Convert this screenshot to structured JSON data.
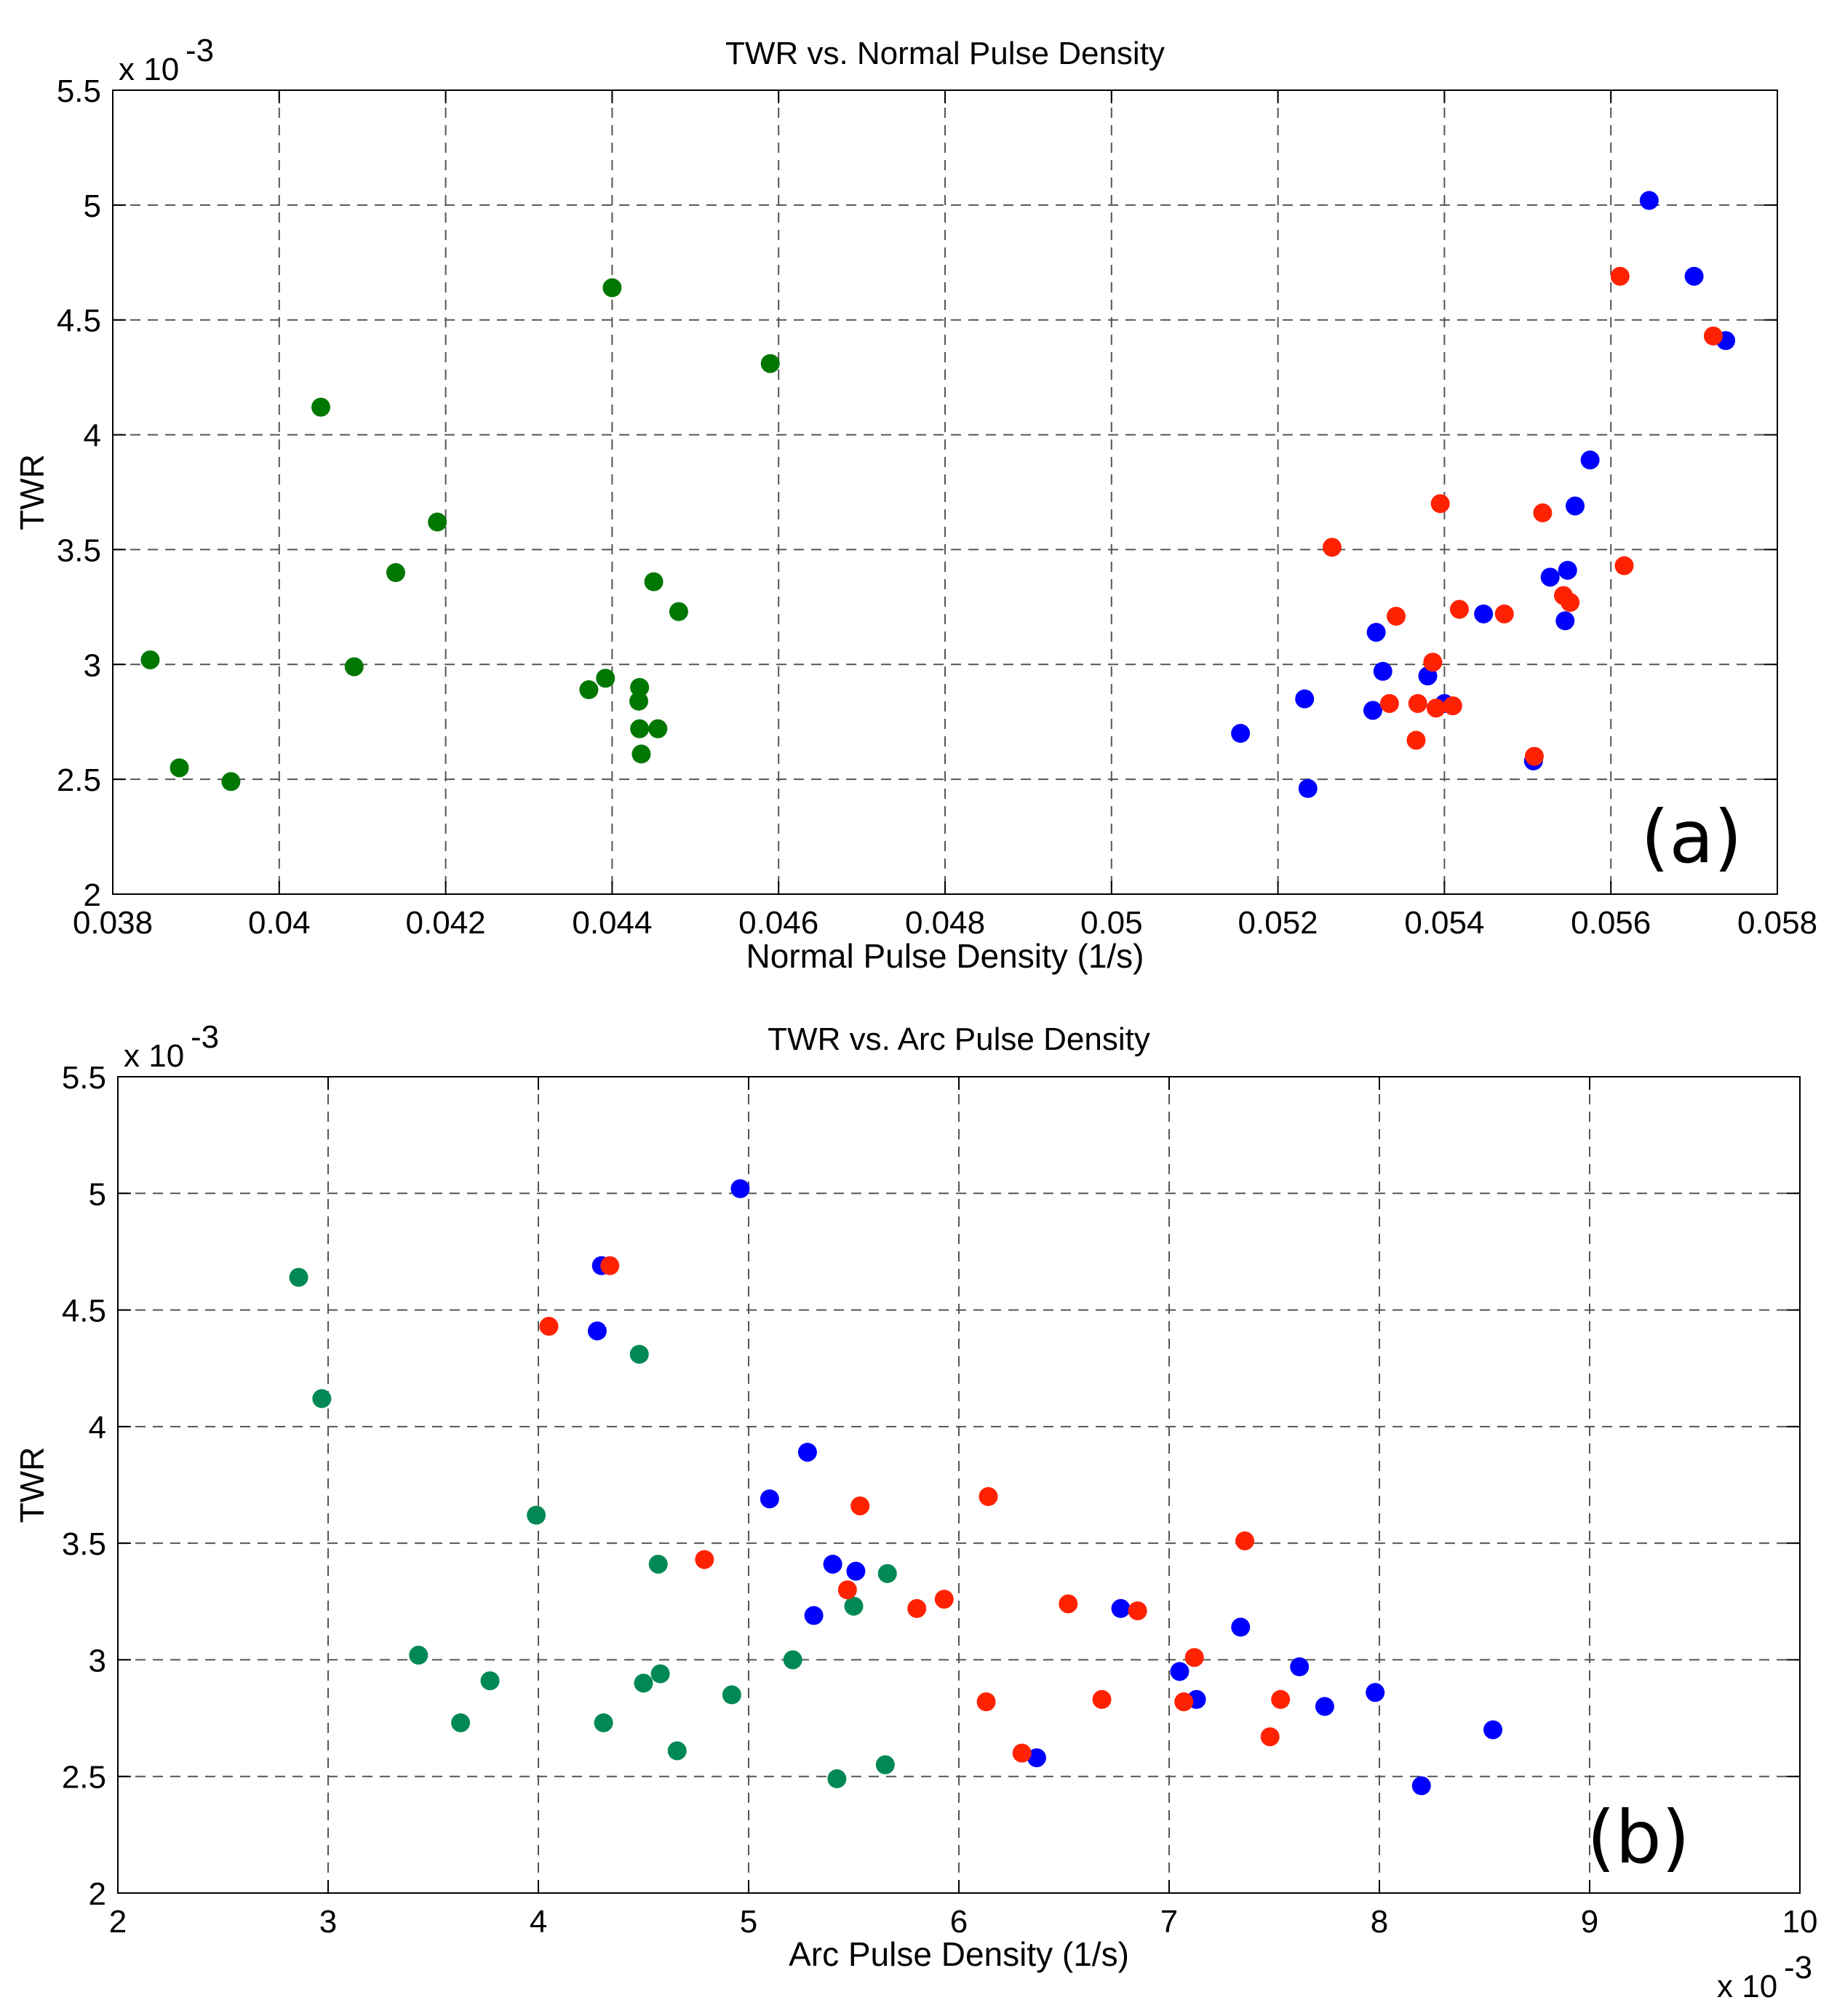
{
  "colors": {
    "red": "#ff2200",
    "blue": "#0000ff",
    "green_a": "#007700",
    "green_b": "#008855"
  },
  "chart_data": [
    {
      "type": "scatter",
      "title": "TWR vs. Normal Pulse Density",
      "xlabel": "Normal Pulse Density (1/s)",
      "ylabel": "TWR",
      "xlim": [
        0.038,
        0.058
      ],
      "ylim": [
        2,
        5.5
      ],
      "xticks": [
        0.038,
        0.04,
        0.042,
        0.044,
        0.046,
        0.048,
        0.05,
        0.052,
        0.054,
        0.056,
        0.058
      ],
      "xtick_labels": [
        "0.038",
        "0.04",
        "0.042",
        "0.044",
        "0.046",
        "0.048",
        "0.05",
        "0.052",
        "0.054",
        "0.056",
        "0.058"
      ],
      "yticks": [
        2,
        2.5,
        3,
        3.5,
        4,
        4.5,
        5,
        5.5
      ],
      "ytick_labels": [
        "2",
        "2.5",
        "3",
        "3.5",
        "4",
        "4.5",
        "5",
        "5.5"
      ],
      "y_multiplier": "x 10",
      "y_exponent": "-3",
      "x_multiplier": "",
      "x_exponent": "",
      "grid": true,
      "panel_label": "(a)",
      "series": [
        {
          "name": "green",
          "color": "#007700",
          "points": [
            [
              0.03845,
              3.02
            ],
            [
              0.0388,
              2.55
            ],
            [
              0.03942,
              2.49
            ],
            [
              0.0405,
              4.12
            ],
            [
              0.0409,
              2.99
            ],
            [
              0.0414,
              3.4
            ],
            [
              0.0419,
              3.62
            ],
            [
              0.04433,
              2.9
            ],
            [
              0.04433,
              2.72
            ],
            [
              0.04372,
              2.89
            ],
            [
              0.04392,
              2.94
            ],
            [
              0.044,
              4.64
            ],
            [
              0.04432,
              2.84
            ],
            [
              0.04435,
              2.61
            ],
            [
              0.0445,
              3.36
            ],
            [
              0.04455,
              2.72
            ],
            [
              0.0448,
              3.23
            ],
            [
              0.0459,
              4.31
            ]
          ]
        },
        {
          "name": "blue",
          "color": "#0000ff",
          "points": [
            [
              0.05155,
              2.7
            ],
            [
              0.05232,
              2.85
            ],
            [
              0.05236,
              2.46
            ],
            [
              0.05314,
              2.8
            ],
            [
              0.05318,
              3.14
            ],
            [
              0.05326,
              2.97
            ],
            [
              0.0538,
              2.95
            ],
            [
              0.054,
              2.83
            ],
            [
              0.05447,
              3.22
            ],
            [
              0.05507,
              2.58
            ],
            [
              0.05527,
              3.38
            ],
            [
              0.05545,
              3.19
            ],
            [
              0.05548,
              3.41
            ],
            [
              0.05557,
              3.69
            ],
            [
              0.05575,
              3.89
            ],
            [
              0.05646,
              5.02
            ],
            [
              0.057,
              4.69
            ],
            [
              0.05738,
              4.41
            ]
          ]
        },
        {
          "name": "red",
          "color": "#ff2200",
          "points": [
            [
              0.05265,
              3.51
            ],
            [
              0.05334,
              2.83
            ],
            [
              0.05342,
              3.21
            ],
            [
              0.05366,
              2.67
            ],
            [
              0.05368,
              2.83
            ],
            [
              0.05386,
              3.01
            ],
            [
              0.0539,
              2.81
            ],
            [
              0.05395,
              3.7
            ],
            [
              0.0541,
              2.82
            ],
            [
              0.05418,
              3.24
            ],
            [
              0.05472,
              3.22
            ],
            [
              0.05508,
              2.6
            ],
            [
              0.05518,
              3.66
            ],
            [
              0.05543,
              3.3
            ],
            [
              0.05551,
              3.27
            ],
            [
              0.05611,
              4.69
            ],
            [
              0.05616,
              3.43
            ],
            [
              0.05723,
              4.43
            ]
          ]
        }
      ]
    },
    {
      "type": "scatter",
      "title": "TWR vs. Arc Pulse Density",
      "xlabel": "Arc Pulse Density (1/s)",
      "ylabel": "TWR",
      "xlim": [
        2,
        10
      ],
      "ylim": [
        2,
        5.5
      ],
      "xticks": [
        2,
        3,
        4,
        5,
        6,
        7,
        8,
        9,
        10
      ],
      "xtick_labels": [
        "2",
        "3",
        "4",
        "5",
        "6",
        "7",
        "8",
        "9",
        "10"
      ],
      "yticks": [
        2,
        2.5,
        3,
        3.5,
        4,
        4.5,
        5,
        5.5
      ],
      "ytick_labels": [
        "2",
        "2.5",
        "3",
        "3.5",
        "4",
        "4.5",
        "5",
        "5.5"
      ],
      "y_multiplier": "x 10",
      "y_exponent": "-3",
      "x_multiplier": "x 10",
      "x_exponent": "-3",
      "grid": true,
      "panel_label": "(b)",
      "series": [
        {
          "name": "green",
          "color": "#008855",
          "points": [
            [
              2.86,
              4.64
            ],
            [
              2.97,
              4.12
            ],
            [
              3.43,
              3.02
            ],
            [
              3.63,
              2.73
            ],
            [
              3.77,
              2.91
            ],
            [
              3.99,
              3.62
            ],
            [
              4.31,
              2.73
            ],
            [
              4.48,
              4.31
            ],
            [
              4.5,
              2.9
            ],
            [
              4.57,
              3.41
            ],
            [
              4.58,
              2.94
            ],
            [
              4.66,
              2.61
            ],
            [
              4.92,
              2.85
            ],
            [
              5.21,
              3.0
            ],
            [
              5.42,
              2.49
            ],
            [
              5.5,
              3.23
            ],
            [
              5.65,
              2.55
            ],
            [
              5.66,
              3.37
            ]
          ]
        },
        {
          "name": "blue",
          "color": "#0000ff",
          "points": [
            [
              4.28,
              4.41
            ],
            [
              4.3,
              4.69
            ],
            [
              4.96,
              5.02
            ],
            [
              5.1,
              3.69
            ],
            [
              5.28,
              3.89
            ],
            [
              5.31,
              3.19
            ],
            [
              5.4,
              3.41
            ],
            [
              5.51,
              3.38
            ],
            [
              6.37,
              2.58
            ],
            [
              6.77,
              3.22
            ],
            [
              7.05,
              2.95
            ],
            [
              7.13,
              2.83
            ],
            [
              7.34,
              3.14
            ],
            [
              7.62,
              2.97
            ],
            [
              7.74,
              2.8
            ],
            [
              7.98,
              2.86
            ],
            [
              8.2,
              2.46
            ],
            [
              8.54,
              2.7
            ]
          ]
        },
        {
          "name": "red",
          "color": "#ff2200",
          "points": [
            [
              4.05,
              4.43
            ],
            [
              4.34,
              4.69
            ],
            [
              4.79,
              3.43
            ],
            [
              5.47,
              3.3
            ],
            [
              5.53,
              3.66
            ],
            [
              5.8,
              3.22
            ],
            [
              5.93,
              3.26
            ],
            [
              6.13,
              2.82
            ],
            [
              6.14,
              3.7
            ],
            [
              6.3,
              2.6
            ],
            [
              6.52,
              3.24
            ],
            [
              6.68,
              2.83
            ],
            [
              6.85,
              3.21
            ],
            [
              7.07,
              2.82
            ],
            [
              7.12,
              3.01
            ],
            [
              7.36,
              3.51
            ],
            [
              7.48,
              2.67
            ],
            [
              7.53,
              2.83
            ]
          ]
        }
      ]
    }
  ]
}
